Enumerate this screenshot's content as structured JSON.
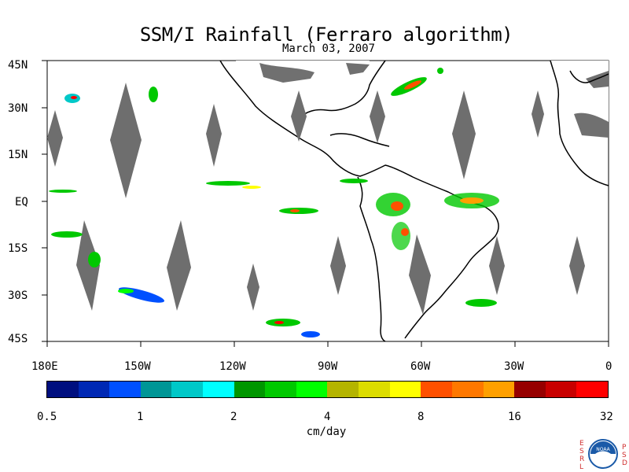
{
  "title": "SSM/I Rainfall (Ferraro algorithm)",
  "subtitle": "March 03, 2007",
  "lat_labels": [
    "45N",
    "30N",
    "15N",
    "EQ",
    "15S",
    "30S",
    "45S"
  ],
  "lon_labels": [
    "180E",
    "150W",
    "120W",
    "90W",
    "60W",
    "30W",
    "0"
  ],
  "colorbar": {
    "colors": [
      "#000f7f",
      "#0028b4",
      "#0050ff",
      "#009696",
      "#00c8c8",
      "#00ffff",
      "#009600",
      "#00c800",
      "#00ff00",
      "#b4b400",
      "#dcdc00",
      "#ffff00",
      "#ff5000",
      "#ff7800",
      "#ffa000",
      "#960000",
      "#c80000",
      "#ff0000"
    ],
    "tick_labels": [
      "0.5",
      "1",
      "2",
      "4",
      "8",
      "16",
      "32"
    ],
    "units": "cm/day"
  },
  "logo": {
    "left_letters": [
      "E",
      "S",
      "R",
      "L"
    ],
    "right_letters": [
      "P",
      "S",
      "D"
    ],
    "center_text": "NOAA"
  }
}
